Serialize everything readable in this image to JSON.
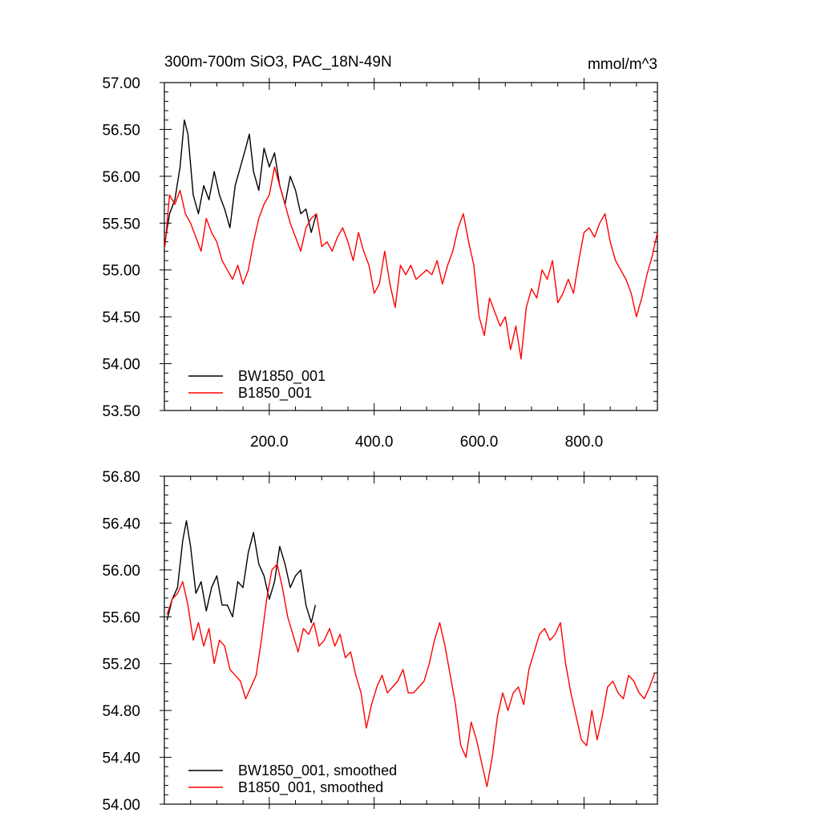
{
  "chart_data": [
    {
      "type": "line",
      "title": "300m-700m SiO3, PAC_18N-49N",
      "units": "mmol/m^3",
      "xlim": [
        0,
        940
      ],
      "ylim": [
        53.5,
        57.0
      ],
      "yticks": [
        "57.00",
        "56.50",
        "56.00",
        "55.50",
        "55.00",
        "54.50",
        "54.00",
        "53.50"
      ],
      "xticks": [
        "200.0",
        "400.0",
        "600.0",
        "800.0"
      ],
      "legend_position": "bottom-left",
      "series": [
        {
          "name": "BW1850_001",
          "color": "#000000",
          "x": [
            1,
            10,
            20,
            30,
            38,
            45,
            55,
            65,
            75,
            85,
            95,
            105,
            115,
            125,
            135,
            145,
            155,
            162,
            170,
            180,
            190,
            200,
            210,
            220,
            230,
            240,
            250,
            260,
            270,
            280,
            290
          ],
          "y": [
            55.3,
            55.6,
            55.75,
            56.1,
            56.6,
            56.45,
            55.8,
            55.6,
            55.9,
            55.75,
            56.05,
            55.8,
            55.65,
            55.45,
            55.9,
            56.1,
            56.3,
            56.45,
            56.05,
            55.85,
            56.3,
            56.1,
            56.25,
            55.9,
            55.7,
            56.0,
            55.85,
            55.6,
            55.65,
            55.4,
            55.6
          ]
        },
        {
          "name": "B1850_001",
          "color": "#ff0000",
          "x": [
            1,
            10,
            20,
            30,
            40,
            50,
            60,
            70,
            80,
            90,
            100,
            110,
            120,
            130,
            140,
            150,
            160,
            170,
            180,
            190,
            200,
            210,
            220,
            230,
            240,
            250,
            260,
            270,
            280,
            290,
            300,
            310,
            320,
            330,
            340,
            350,
            360,
            370,
            380,
            390,
            400,
            410,
            420,
            430,
            440,
            450,
            460,
            470,
            480,
            490,
            500,
            510,
            520,
            530,
            540,
            550,
            560,
            570,
            580,
            590,
            600,
            610,
            620,
            630,
            640,
            650,
            660,
            670,
            680,
            690,
            700,
            710,
            720,
            730,
            740,
            750,
            760,
            770,
            780,
            790,
            800,
            810,
            820,
            830,
            840,
            850,
            860,
            870,
            880,
            890,
            900,
            910,
            920,
            930,
            940
          ],
          "y": [
            55.25,
            55.8,
            55.7,
            55.85,
            55.6,
            55.5,
            55.35,
            55.2,
            55.55,
            55.4,
            55.3,
            55.1,
            55.0,
            54.9,
            55.05,
            54.85,
            55.0,
            55.3,
            55.55,
            55.7,
            55.8,
            56.1,
            55.9,
            55.7,
            55.5,
            55.35,
            55.2,
            55.45,
            55.55,
            55.6,
            55.25,
            55.3,
            55.2,
            55.35,
            55.45,
            55.3,
            55.1,
            55.4,
            55.2,
            55.05,
            54.75,
            54.85,
            55.2,
            54.85,
            54.6,
            55.05,
            54.95,
            55.05,
            54.9,
            54.95,
            55.0,
            54.95,
            55.1,
            54.85,
            55.05,
            55.2,
            55.45,
            55.6,
            55.3,
            55.05,
            54.5,
            54.3,
            54.7,
            54.55,
            54.4,
            54.5,
            54.15,
            54.4,
            54.05,
            54.6,
            54.8,
            54.7,
            55.0,
            54.9,
            55.1,
            54.65,
            54.75,
            54.9,
            54.75,
            55.1,
            55.4,
            55.45,
            55.35,
            55.5,
            55.6,
            55.3,
            55.1,
            55.0,
            54.9,
            54.75,
            54.5,
            54.7,
            54.95,
            55.15,
            55.4
          ]
        }
      ]
    },
    {
      "type": "line",
      "xlim": [
        0,
        940
      ],
      "ylim": [
        54.0,
        56.8
      ],
      "yticks": [
        "56.80",
        "56.40",
        "56.00",
        "55.60",
        "55.20",
        "54.80",
        "54.40",
        "54.00"
      ],
      "legend_position": "bottom-left",
      "series": [
        {
          "name": "BW1850_001, smoothed",
          "color": "#000000",
          "x": [
            5,
            15,
            25,
            35,
            42,
            50,
            60,
            70,
            80,
            90,
            100,
            110,
            120,
            130,
            140,
            150,
            160,
            170,
            180,
            190,
            200,
            210,
            220,
            230,
            240,
            250,
            260,
            270,
            280,
            288
          ],
          "y": [
            55.57,
            55.75,
            55.85,
            56.25,
            56.42,
            56.2,
            55.8,
            55.9,
            55.65,
            55.85,
            55.95,
            55.7,
            55.7,
            55.6,
            55.9,
            55.85,
            56.15,
            56.32,
            56.05,
            55.95,
            55.75,
            55.9,
            56.2,
            56.05,
            55.85,
            55.95,
            56.0,
            55.7,
            55.55,
            55.7
          ]
        },
        {
          "name": "B1850_001, smoothed",
          "color": "#ff0000",
          "x": [
            5,
            15,
            25,
            35,
            45,
            55,
            65,
            75,
            85,
            95,
            105,
            115,
            125,
            135,
            145,
            155,
            165,
            175,
            185,
            195,
            205,
            215,
            225,
            235,
            245,
            255,
            265,
            275,
            285,
            295,
            305,
            315,
            325,
            335,
            345,
            355,
            365,
            375,
            385,
            395,
            405,
            415,
            425,
            435,
            445,
            455,
            465,
            475,
            485,
            495,
            505,
            515,
            525,
            535,
            545,
            555,
            565,
            575,
            585,
            595,
            605,
            615,
            625,
            635,
            645,
            655,
            665,
            675,
            685,
            695,
            705,
            715,
            725,
            735,
            745,
            755,
            765,
            775,
            785,
            795,
            805,
            815,
            825,
            835,
            845,
            855,
            865,
            875,
            885,
            895,
            905,
            915,
            925,
            935
          ],
          "y": [
            55.62,
            55.75,
            55.8,
            55.9,
            55.7,
            55.4,
            55.55,
            55.35,
            55.5,
            55.2,
            55.4,
            55.35,
            55.15,
            55.1,
            55.05,
            54.9,
            55.0,
            55.1,
            55.4,
            55.75,
            56.0,
            56.05,
            55.85,
            55.6,
            55.45,
            55.3,
            55.5,
            55.45,
            55.55,
            55.35,
            55.4,
            55.5,
            55.35,
            55.45,
            55.25,
            55.3,
            55.1,
            54.95,
            54.65,
            54.85,
            55.0,
            55.1,
            54.95,
            55.0,
            55.05,
            55.15,
            54.95,
            54.95,
            55.0,
            55.05,
            55.2,
            55.4,
            55.55,
            55.35,
            55.1,
            54.85,
            54.5,
            54.4,
            54.7,
            54.55,
            54.35,
            54.15,
            54.4,
            54.75,
            54.95,
            54.8,
            54.95,
            55.0,
            54.85,
            55.15,
            55.3,
            55.45,
            55.5,
            55.4,
            55.45,
            55.55,
            55.2,
            54.95,
            54.75,
            54.55,
            54.5,
            54.8,
            54.55,
            54.75,
            55.0,
            55.05,
            54.95,
            54.9,
            55.1,
            55.05,
            54.95,
            54.9,
            55.0,
            55.12
          ]
        }
      ]
    }
  ]
}
